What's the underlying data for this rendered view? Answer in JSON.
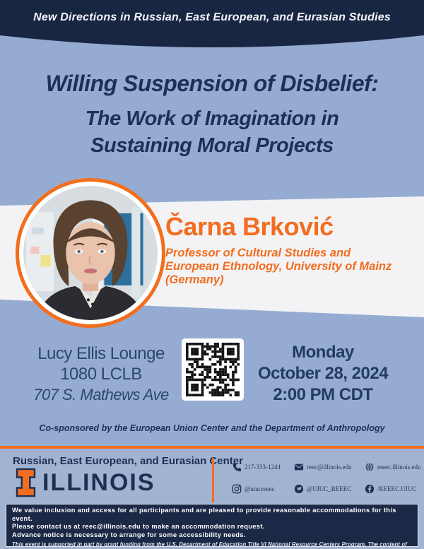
{
  "banner": {
    "text": "New Directions in Russian, East European, and Eurasian Studies"
  },
  "title": {
    "line1": "Willing Suspension of Disbelief:",
    "line2": "The Work of Imagination in",
    "line3": "Sustaining Moral Projects"
  },
  "speaker": {
    "name": "Čarna Brković",
    "affiliation_line1": "Professor of Cultural Studies and",
    "affiliation_line2": "European Ethnology, University of Mainz",
    "affiliation_line3": "(Germany)"
  },
  "event": {
    "location": {
      "venue": "Lucy Ellis Lounge",
      "room": "1080 LCLB",
      "address": "707 S. Mathews Ave"
    },
    "datetime": {
      "day": "Monday",
      "date": "October 28, 2024",
      "time": "2:00 PM CDT"
    }
  },
  "cosponsor": {
    "text": "Co-sponsored by the European Union Center and the Department of Anthropology"
  },
  "footer": {
    "center_name": "Russian, East European, and Eurasian Center",
    "wordmark": "ILLINOIS",
    "contacts": [
      {
        "icon": "phone-icon",
        "label": "217-333-1244"
      },
      {
        "icon": "envelope-icon",
        "label": "reec@illinois.edu"
      },
      {
        "icon": "globe-icon",
        "label": "reeec.illinois.edu"
      },
      {
        "icon": "instagram-icon",
        "label": "@uiucreeec"
      },
      {
        "icon": "twitter-icon",
        "label": "@UIUC_REEEC"
      },
      {
        "icon": "facebook-icon",
        "label": "/REEEC.UIUC"
      }
    ]
  },
  "legal": {
    "line1": "We value inclusion and access for all participants and are pleased to provide reasonable accommodations for this event.",
    "line2": "Please contact us at reec@illinois.edu to make an accommodation request.",
    "line3": "Advance notice is necessary to arrange for some accessibility needs.",
    "disclaimer": "This event is supported in part by grant funding from the U.S. Department of Education Title VI National Resource Centers Program. The content of this event does not necessarily represent the policy of the U.S. Department of Education, and you should not assume endorsement by the Federal Government."
  },
  "colors": {
    "navy": "#192642",
    "light_blue": "#96abd1",
    "footer_blue": "#a2b3d2",
    "orange": "#f26e1d",
    "band_white": "#f3f3f6",
    "text_navy": "#1d3055"
  }
}
